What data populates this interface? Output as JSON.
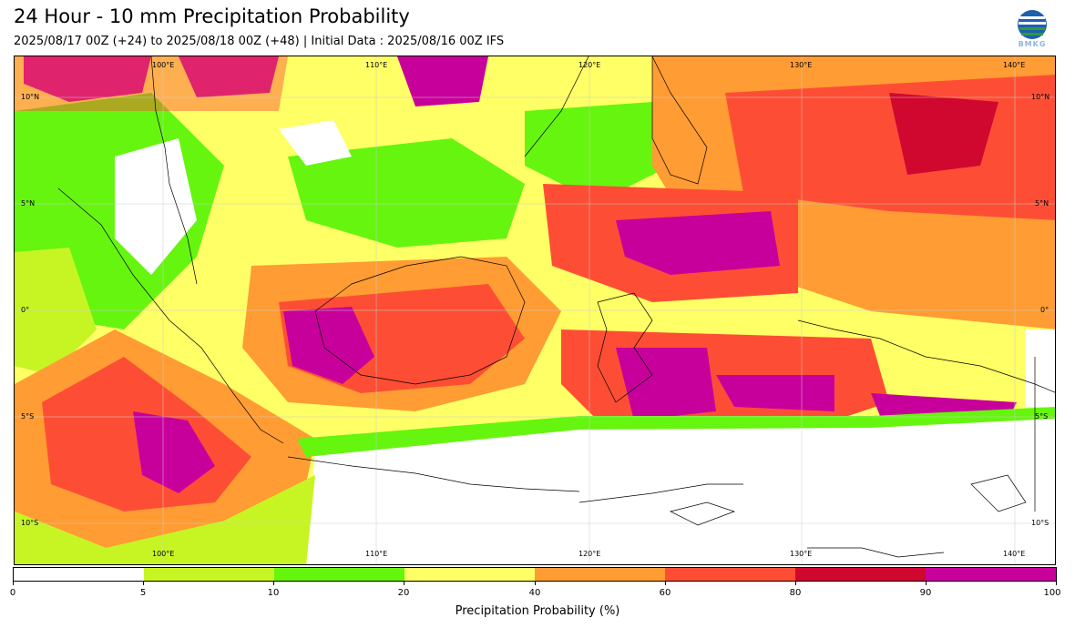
{
  "title": "24 Hour - 10 mm Precipitation Probability",
  "subtitle": "2025/08/17 00Z (+24) to 2025/08/18 00Z (+48) | Initial Data : 2025/08/16 00Z IFS",
  "logo": {
    "icon": "bmkg-logo",
    "text": "BMKG"
  },
  "map": {
    "lon_labels": [
      "100°E",
      "110°E",
      "120°E",
      "130°E",
      "140°E"
    ],
    "lat_labels": [
      "10°N",
      "5°N",
      "0°",
      "5°S",
      "10°S"
    ],
    "colors": {
      "p0_5": "#ffffff",
      "p5_10": "#c7f524",
      "p10_20": "#66f50f",
      "p20_40": "#ffff66",
      "p40_60": "#ff9c33",
      "p60_80": "#fd4e35",
      "p80_90": "#d0072f",
      "p90_100": "#c8009b",
      "coastline": "#000000"
    }
  },
  "colorbar": {
    "ticks": [
      "0",
      "5",
      "10",
      "20",
      "40",
      "60",
      "80",
      "90",
      "100"
    ],
    "colors": [
      "#ffffff",
      "#c7f524",
      "#66f50f",
      "#ffff66",
      "#ff9c33",
      "#fd4e35",
      "#d0072f",
      "#c8009b"
    ],
    "label": "Precipitation Probability (%)"
  }
}
